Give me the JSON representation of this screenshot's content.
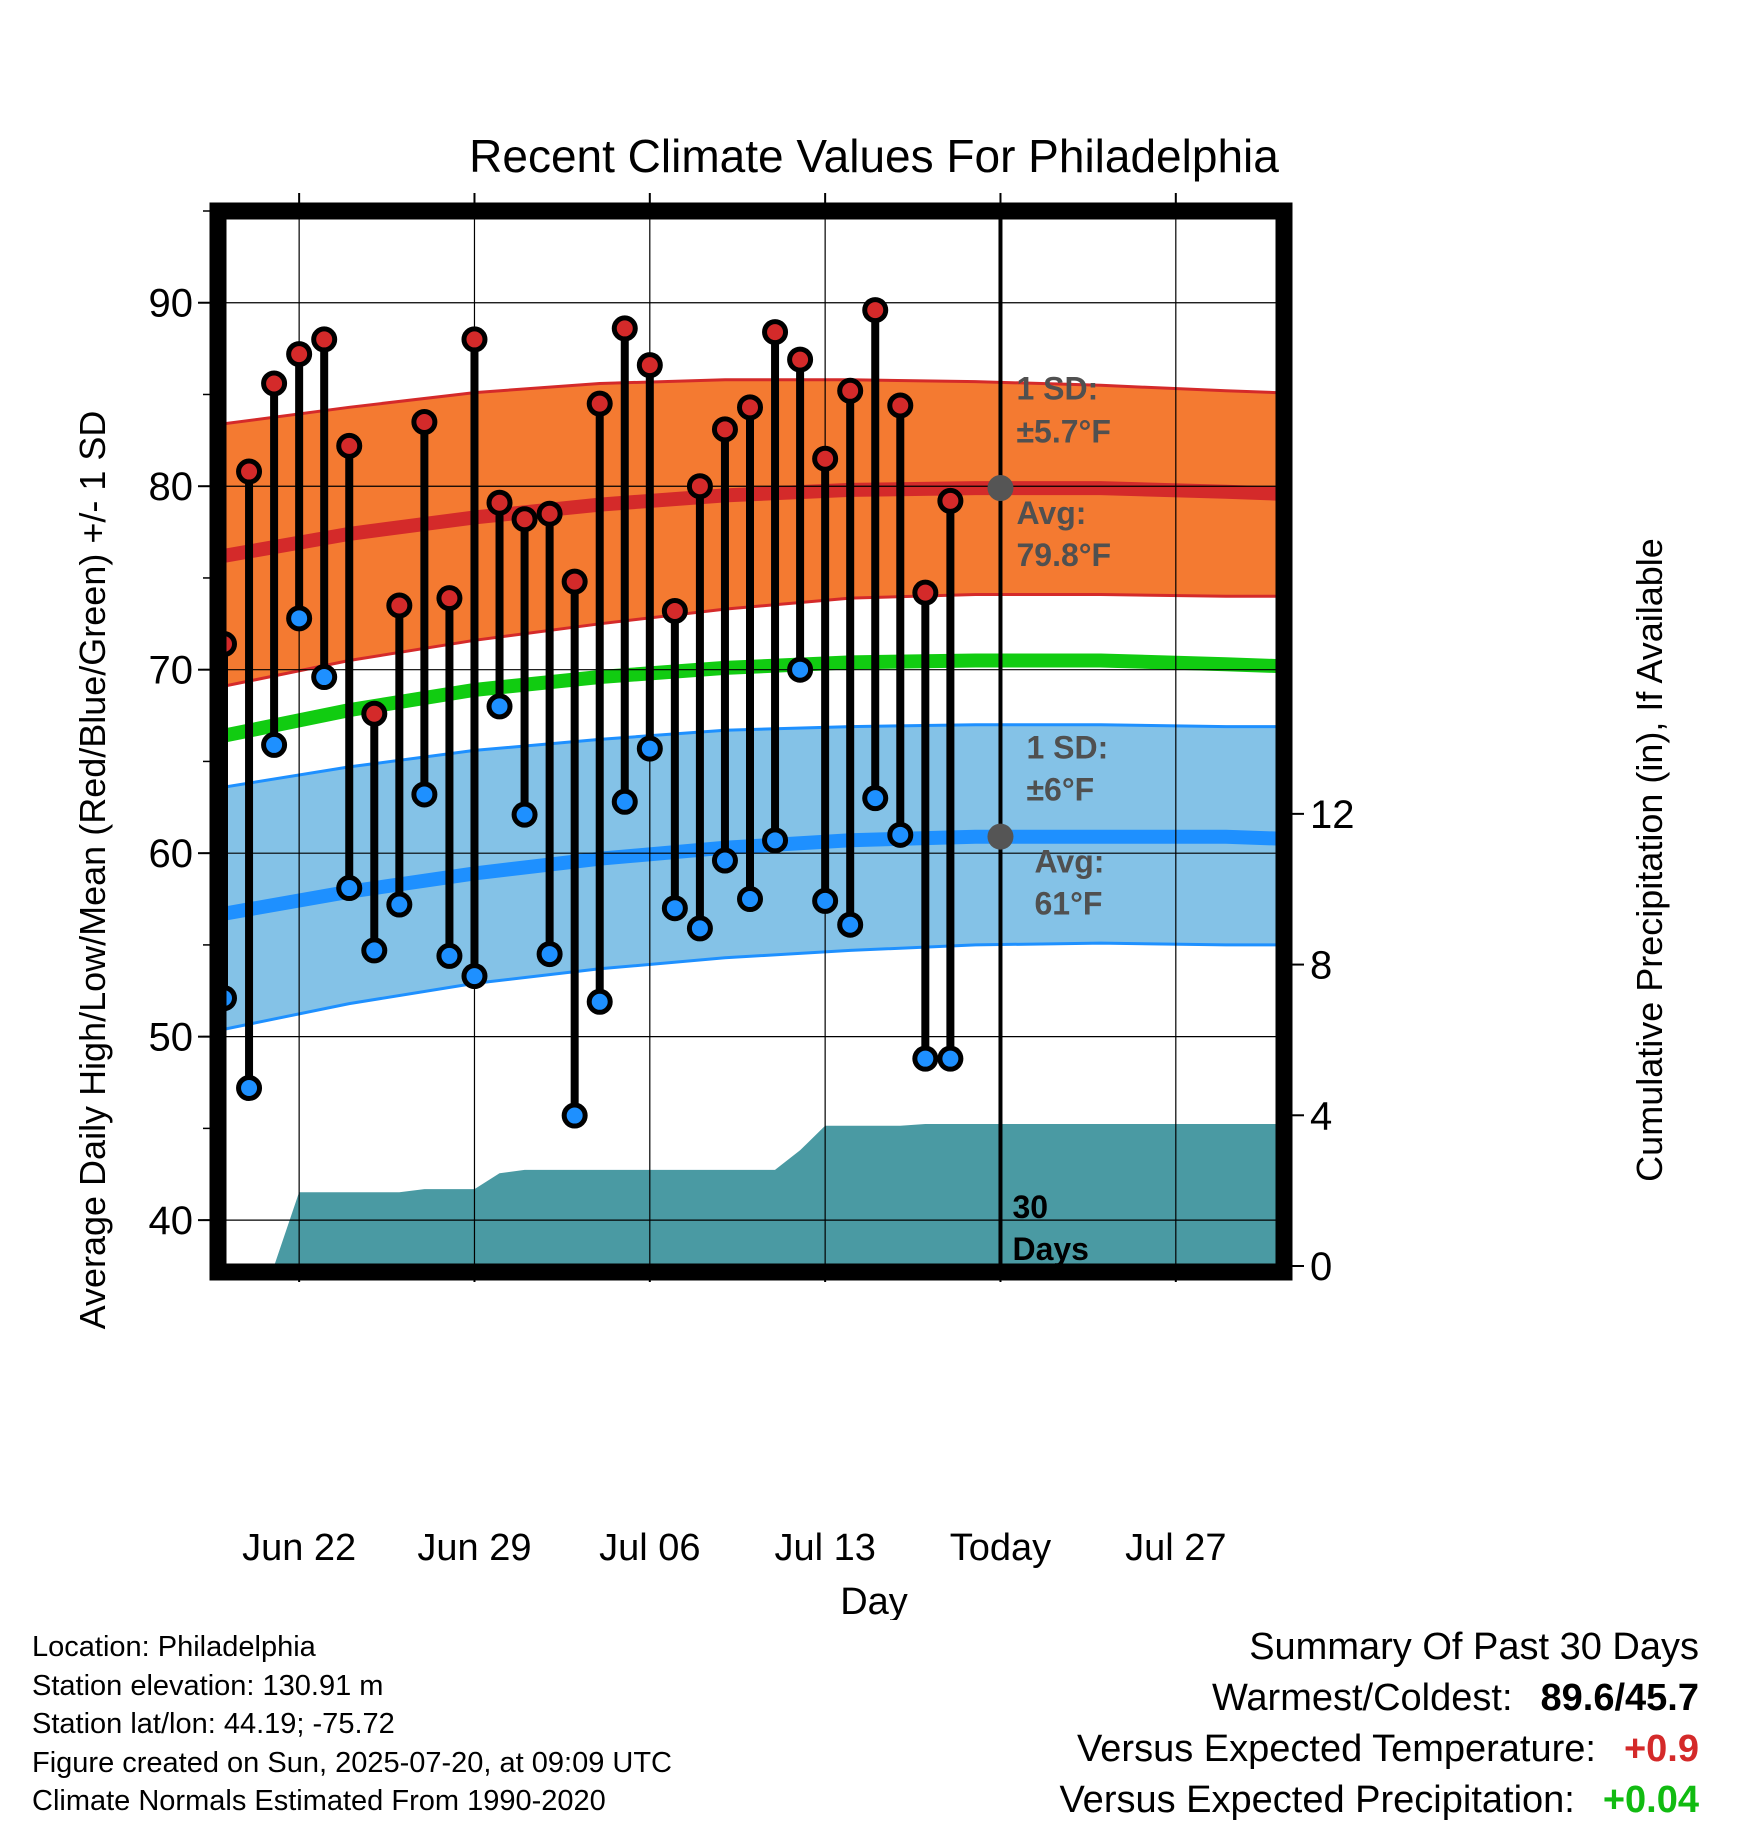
{
  "chart_data": {
    "type": "line",
    "title": "Recent Climate Values For Philadelphia",
    "xlabel": "Day",
    "ylabel": "Average Daily High/Low/Mean (Red/Blue/Green) +/- 1 SD",
    "ylabel_right": "Cumulative Precipitation (in), If Available",
    "xlim": [
      "2025-06-19",
      "2025-07-31"
    ],
    "ylim": [
      37.5,
      95
    ],
    "ylim_right": [
      0,
      28
    ],
    "x_ticks": [
      {
        "date": "2025-06-22",
        "label": "Jun 22"
      },
      {
        "date": "2025-06-29",
        "label": "Jun 29"
      },
      {
        "date": "2025-07-06",
        "label": "Jul 06"
      },
      {
        "date": "2025-07-13",
        "label": "Jul 13"
      },
      {
        "date": "2025-07-20",
        "label": "Today"
      },
      {
        "date": "2025-07-27",
        "label": "Jul 27"
      }
    ],
    "y_ticks": [
      40,
      50,
      60,
      70,
      80,
      90
    ],
    "y_ticks_right": [
      0,
      4,
      8,
      12
    ],
    "grid": true,
    "today": "2025-07-20",
    "normals": {
      "dates": [
        "2025-06-19",
        "2025-06-24",
        "2025-06-29",
        "2025-07-04",
        "2025-07-09",
        "2025-07-14",
        "2025-07-19",
        "2025-07-24",
        "2025-07-29",
        "2025-07-31"
      ],
      "avg_high": [
        76.2,
        77.4,
        78.3,
        79.0,
        79.5,
        79.8,
        79.9,
        79.9,
        79.7,
        79.6
      ],
      "high_sd_upper": [
        83.4,
        84.3,
        85.1,
        85.6,
        85.8,
        85.8,
        85.7,
        85.5,
        85.2,
        85.1
      ],
      "high_sd_lower": [
        69.1,
        70.5,
        71.6,
        72.5,
        73.3,
        73.9,
        74.1,
        74.1,
        74.0,
        74.0
      ],
      "avg_mean": [
        66.4,
        67.8,
        68.9,
        69.6,
        70.1,
        70.4,
        70.5,
        70.5,
        70.3,
        70.2
      ],
      "avg_low": [
        56.7,
        57.9,
        58.9,
        59.7,
        60.3,
        60.7,
        60.9,
        60.9,
        60.9,
        60.8
      ],
      "low_sd_upper": [
        63.6,
        64.7,
        65.6,
        66.2,
        66.7,
        66.9,
        67.0,
        67.0,
        66.9,
        66.9
      ],
      "low_sd_lower": [
        50.4,
        51.8,
        52.9,
        53.7,
        54.3,
        54.7,
        55.0,
        55.1,
        55.0,
        55.0
      ]
    },
    "series": [
      {
        "name": "High",
        "color": "#d42a2a",
        "x": [
          "2025-06-19",
          "2025-06-20",
          "2025-06-21",
          "2025-06-22",
          "2025-06-23",
          "2025-06-24",
          "2025-06-25",
          "2025-06-26",
          "2025-06-27",
          "2025-06-28",
          "2025-06-29",
          "2025-06-30",
          "2025-07-01",
          "2025-07-02",
          "2025-07-03",
          "2025-07-04",
          "2025-07-05",
          "2025-07-06",
          "2025-07-07",
          "2025-07-08",
          "2025-07-09",
          "2025-07-10",
          "2025-07-11",
          "2025-07-12",
          "2025-07-13",
          "2025-07-14",
          "2025-07-15",
          "2025-07-16",
          "2025-07-17",
          "2025-07-18",
          "2025-07-19"
        ],
        "values": [
          71.4,
          80.8,
          85.6,
          87.2,
          88.0,
          82.2,
          67.6,
          73.5,
          83.5,
          73.9,
          88.0,
          79.1,
          78.2,
          78.5,
          74.8,
          84.5,
          88.6,
          86.6,
          73.2,
          80.0,
          83.1,
          84.3,
          88.4,
          86.9,
          81.5,
          85.2,
          89.6,
          84.4,
          74.2,
          79.2,
          null
        ]
      },
      {
        "name": "Low",
        "color": "#1e90ff",
        "x": [
          "2025-06-19",
          "2025-06-20",
          "2025-06-21",
          "2025-06-22",
          "2025-06-23",
          "2025-06-24",
          "2025-06-25",
          "2025-06-26",
          "2025-06-27",
          "2025-06-28",
          "2025-06-29",
          "2025-06-30",
          "2025-07-01",
          "2025-07-02",
          "2025-07-03",
          "2025-07-04",
          "2025-07-05",
          "2025-07-06",
          "2025-07-07",
          "2025-07-08",
          "2025-07-09",
          "2025-07-10",
          "2025-07-11",
          "2025-07-12",
          "2025-07-13",
          "2025-07-14",
          "2025-07-15",
          "2025-07-16",
          "2025-07-17",
          "2025-07-18",
          "2025-07-19"
        ],
        "values": [
          52.1,
          47.2,
          65.9,
          72.8,
          69.6,
          58.1,
          54.7,
          57.2,
          63.2,
          54.4,
          53.3,
          68.0,
          62.1,
          54.5,
          45.7,
          51.9,
          62.8,
          65.7,
          57.0,
          55.9,
          59.6,
          57.5,
          60.7,
          70.0,
          57.4,
          56.1,
          63.0,
          61.0,
          48.8,
          48.8,
          null
        ]
      }
    ],
    "precipitation": {
      "x": [
        "2025-06-19",
        "2025-06-20",
        "2025-06-21",
        "2025-06-22",
        "2025-06-23",
        "2025-06-24",
        "2025-06-25",
        "2025-06-26",
        "2025-06-27",
        "2025-06-28",
        "2025-06-29",
        "2025-06-30",
        "2025-07-01",
        "2025-07-02",
        "2025-07-03",
        "2025-07-04",
        "2025-07-05",
        "2025-07-06",
        "2025-07-07",
        "2025-07-08",
        "2025-07-09",
        "2025-07-10",
        "2025-07-11",
        "2025-07-12",
        "2025-07-13",
        "2025-07-14",
        "2025-07-15",
        "2025-07-16",
        "2025-07-17",
        "2025-07-18",
        "2025-07-19",
        "2025-07-20",
        "2025-07-31"
      ],
      "values": [
        0,
        0,
        0,
        1.96,
        1.96,
        1.96,
        1.96,
        1.96,
        2.04,
        2.04,
        2.04,
        2.46,
        2.55,
        2.55,
        2.55,
        2.55,
        2.55,
        2.55,
        2.55,
        2.55,
        2.55,
        2.55,
        2.55,
        3.07,
        3.72,
        3.72,
        3.72,
        3.72,
        3.77,
        3.77,
        3.77,
        3.77,
        3.77
      ]
    },
    "annotations": {
      "high_sd_label": "1 SD:",
      "high_sd_value": "±5.7°F",
      "high_avg_label": "Avg:",
      "high_avg_value": "79.8°F",
      "low_sd_label": "1 SD:",
      "low_sd_value": "±6°F",
      "low_avg_label": "Avg:",
      "low_avg_value": "61°F",
      "window_label_1": "30",
      "window_label_2": "Days"
    }
  },
  "colors": {
    "high_band": "#f47a31",
    "high_line": "#d42a2a",
    "low_band": "#84c2e7",
    "low_line": "#1e90ff",
    "mean_line": "#11cc11",
    "precip_fill": "#4a9aa3",
    "marker_gray": "#555555",
    "annotation_text": "#505050",
    "positive_temp": "#d42a2a",
    "positive_precip": "#11bb11"
  },
  "footer": {
    "location": "Location: Philadelphia",
    "elevation": "Station elevation: 130.91 m",
    "latlon": "Station lat/lon: 44.19; -75.72",
    "created": "Figure created on Sun, 2025-07-20, at 09:09 UTC",
    "normals": "Climate Normals Estimated From 1990-2020"
  },
  "summary": {
    "title": "Summary Of Past 30 Days",
    "warmest_label": "Warmest/Coldest:",
    "warmest_value": "89.6/45.7",
    "temp_label": "Versus Expected Temperature:",
    "temp_value": "+0.9",
    "precip_label": "Versus Expected Precipitation:",
    "precip_value": "+0.04"
  }
}
